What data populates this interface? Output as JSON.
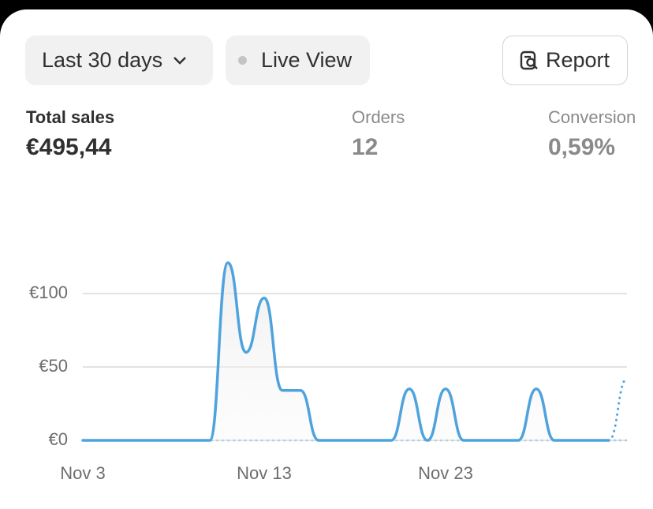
{
  "header": {
    "range_button": "Last 30 days",
    "live_button": "Live View",
    "report_button": "Report"
  },
  "metrics": [
    {
      "label": "Total sales",
      "value": "€495,44"
    },
    {
      "label": "Orders",
      "value": "12"
    },
    {
      "label": "Conversion",
      "value": "0,59%"
    }
  ],
  "chart_data": {
    "type": "line",
    "categories": [
      "Nov 3",
      null,
      null,
      null,
      null,
      null,
      null,
      null,
      null,
      null,
      "Nov 13",
      null,
      null,
      null,
      null,
      null,
      null,
      null,
      null,
      null,
      "Nov 23",
      null,
      null,
      null,
      null,
      null,
      null,
      null,
      null,
      null,
      null
    ],
    "series": [
      {
        "color": "#4fa3dd",
        "values": [
          0,
          0,
          0,
          0,
          0,
          0,
          0,
          0,
          121,
          60,
          97,
          34,
          34,
          0,
          0,
          0,
          0,
          0,
          35,
          0,
          35,
          0,
          0,
          0,
          0,
          35,
          0,
          0,
          0,
          0,
          null
        ]
      },
      {
        "color": "#4fa3dd",
        "dashed": true,
        "values": [
          null,
          null,
          null,
          null,
          null,
          null,
          null,
          null,
          null,
          null,
          null,
          null,
          null,
          null,
          null,
          null,
          null,
          null,
          null,
          null,
          null,
          null,
          null,
          null,
          null,
          null,
          null,
          null,
          null,
          0,
          42
        ]
      },
      {
        "color": "#a9cfe0",
        "dashed": true,
        "values": [
          0,
          0,
          0,
          0,
          0,
          0,
          0,
          0,
          0,
          0,
          0,
          0,
          0,
          0,
          0,
          0,
          0,
          0,
          0,
          0,
          0,
          0,
          0,
          0,
          0,
          0,
          0,
          0,
          0,
          0,
          0
        ]
      }
    ],
    "ylim": [
      0,
      128
    ],
    "yticks": [
      {
        "value": 0,
        "label": "€0"
      },
      {
        "value": 50,
        "label": "€50"
      },
      {
        "value": 100,
        "label": "€100"
      }
    ],
    "grid": true
  }
}
